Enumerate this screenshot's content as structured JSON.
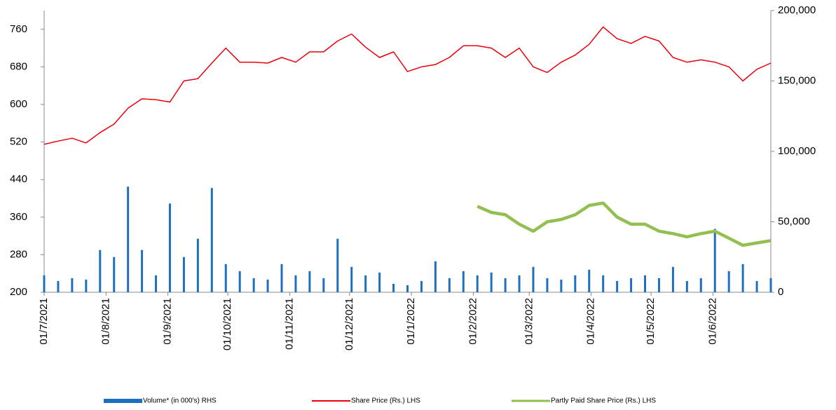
{
  "chart_data": {
    "type": "combo",
    "x": [
      "01/7/2021",
      "08/7/2021",
      "15/7/2021",
      "22/7/2021",
      "29/7/2021",
      "05/8/2021",
      "12/8/2021",
      "19/8/2021",
      "26/8/2021",
      "02/9/2021",
      "09/9/2021",
      "16/9/2021",
      "23/9/2021",
      "30/9/2021",
      "07/10/2021",
      "14/10/2021",
      "21/10/2021",
      "28/10/2021",
      "04/11/2021",
      "11/11/2021",
      "18/11/2021",
      "25/11/2021",
      "02/12/2021",
      "09/12/2021",
      "16/12/2021",
      "23/12/2021",
      "30/12/2021",
      "06/1/2022",
      "13/1/2022",
      "20/1/2022",
      "27/1/2022",
      "03/2/2022",
      "10/2/2022",
      "17/2/2022",
      "24/2/2022",
      "03/3/2022",
      "10/3/2022",
      "17/3/2022",
      "24/3/2022",
      "31/3/2022",
      "07/4/2022",
      "14/4/2022",
      "21/4/2022",
      "28/4/2022",
      "05/5/2022",
      "12/5/2022",
      "19/5/2022",
      "26/5/2022",
      "02/6/2022",
      "09/6/2022",
      "16/6/2022",
      "23/6/2022",
      "30/6/2022"
    ],
    "series": [
      {
        "name": "Volume* (in 000's) RHS",
        "kind": "bar",
        "axis": "y2",
        "color": "#1f6fbf",
        "values": [
          12000,
          8000,
          10000,
          9000,
          30000,
          25000,
          75000,
          30000,
          12000,
          63000,
          25000,
          38000,
          74000,
          20000,
          15000,
          10000,
          9000,
          20000,
          12000,
          15000,
          10000,
          38000,
          18000,
          12000,
          14000,
          6000,
          5000,
          8000,
          22000,
          10000,
          15000,
          12000,
          14000,
          10000,
          12000,
          18000,
          10000,
          9000,
          12000,
          16000,
          12000,
          8000,
          10000,
          12000,
          10000,
          18000,
          8000,
          10000,
          45000,
          15000,
          20000,
          8000,
          10000
        ]
      },
      {
        "name": "Share Price (Rs.) LHS",
        "kind": "line",
        "color": "#e8000b",
        "width": 1.5,
        "values": [
          515,
          522,
          528,
          518,
          540,
          558,
          592,
          612,
          610,
          605,
          650,
          655,
          688,
          720,
          690,
          690,
          688,
          700,
          690,
          712,
          712,
          735,
          750,
          722,
          700,
          712,
          670,
          680,
          685,
          700,
          725,
          725,
          720,
          700,
          720,
          680,
          668,
          690,
          705,
          728,
          765,
          740,
          730,
          745,
          735,
          700,
          690,
          695,
          690,
          680,
          650,
          675,
          688
        ]
      },
      {
        "name": "Partly Paid Share Price (Rs.) LHS",
        "kind": "line",
        "color": "#92c050",
        "width": 4.5,
        "values": [
          null,
          null,
          null,
          null,
          null,
          null,
          null,
          null,
          null,
          null,
          null,
          null,
          null,
          null,
          null,
          null,
          null,
          null,
          null,
          null,
          null,
          null,
          null,
          null,
          null,
          null,
          null,
          null,
          null,
          null,
          null,
          383,
          370,
          365,
          345,
          330,
          350,
          355,
          365,
          385,
          390,
          360,
          345,
          345,
          330,
          325,
          318,
          325,
          330,
          315,
          300,
          305,
          310
        ]
      }
    ],
    "xlim": [
      "01/7/2021",
      "30/6/2022"
    ],
    "xticks": [
      "01/7/2021",
      "01/8/2021",
      "01/9/2021",
      "01/10/2021",
      "01/11/2021",
      "01/12/2021",
      "01/1/2022",
      "01/2/2022",
      "01/3/2022",
      "01/4/2022",
      "01/5/2022",
      "01/6/2022"
    ],
    "ylim": [
      200,
      800
    ],
    "yticks": [
      200,
      280,
      360,
      440,
      520,
      600,
      680,
      760
    ],
    "y2lim": [
      0,
      200000
    ],
    "y2ticks": [
      0,
      {
        "value": 50000,
        "label": "50,000"
      },
      {
        "value": 100000,
        "label": "100,000"
      },
      {
        "value": 150000,
        "label": "150,000"
      },
      {
        "value": 200000,
        "label": "200,000"
      }
    ],
    "legend": "bottom"
  }
}
